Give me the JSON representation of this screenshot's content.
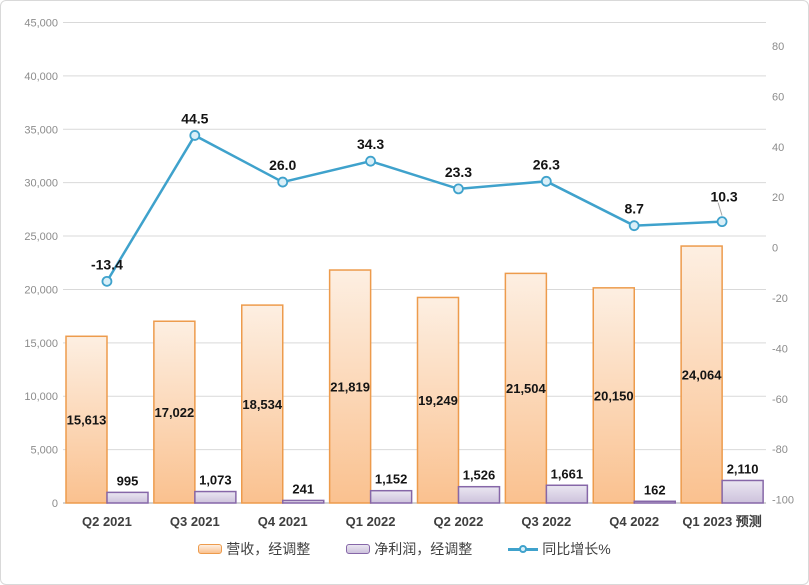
{
  "chart_data": {
    "type": "combo",
    "categories": [
      "Q2 2021",
      "Q3 2021",
      "Q4 2021",
      "Q1 2022",
      "Q2 2022",
      "Q3 2022",
      "Q4 2022",
      "Q1 2023 预测"
    ],
    "series": [
      {
        "name": "营收，经调整",
        "type": "bar",
        "axis": "left",
        "values": [
          15613,
          17022,
          18534,
          21819,
          19249,
          21504,
          20150,
          24064
        ],
        "value_labels": [
          "15,613",
          "17,022",
          "18,534",
          "21,819",
          "19,249",
          "21,504",
          "20,150",
          "24,064"
        ],
        "color": "#ED9B4C",
        "fill_top": "#FDEFE2",
        "fill_bottom": "#FAC18F"
      },
      {
        "name": "净利润，经调整",
        "type": "bar",
        "axis": "left",
        "values": [
          995,
          1073,
          241,
          1152,
          1526,
          1661,
          162,
          2110
        ],
        "value_labels": [
          "995",
          "1,073",
          "241",
          "1,152",
          "1,526",
          "1,661",
          "162",
          "2,110"
        ],
        "color": "#8667A8",
        "fill_top": "#EAE6F1",
        "fill_bottom": "#CDC2DC"
      },
      {
        "name": "同比增长%",
        "type": "line",
        "axis": "right",
        "values": [
          -13.4,
          44.5,
          26.0,
          34.3,
          23.3,
          26.3,
          8.7,
          10.3
        ],
        "value_labels": [
          "-13.4",
          "44.5",
          "26.0",
          "34.3",
          "23.3",
          "26.3",
          "8.7",
          "10.3"
        ],
        "color": "#3FA2CC",
        "marker_fill": "#D9EFF8"
      }
    ],
    "left_axis": {
      "min": 0,
      "max": 45000,
      "step": 5000,
      "tick_labels": [
        "0",
        "5,000",
        "10,000",
        "15,000",
        "20,000",
        "25,000",
        "30,000",
        "35,000",
        "40,000",
        "45,000"
      ]
    },
    "right_axis": {
      "top_tick": 80,
      "step": -20,
      "tick_labels": [
        "80",
        "60",
        "40",
        "20",
        "0",
        "-20",
        "-40",
        "-60",
        "-80",
        "-100"
      ]
    },
    "grid": true,
    "legend_position": "bottom"
  },
  "colors": {
    "gridline": "#D9D9D9",
    "axis_line": "#A6A6A6",
    "tick_text": "#8C8C8C",
    "category_text": "#3F3F3F",
    "leader_line": "#A6A6A6",
    "frame_border": "#D9D9D9",
    "background": "#FFFFFF"
  }
}
